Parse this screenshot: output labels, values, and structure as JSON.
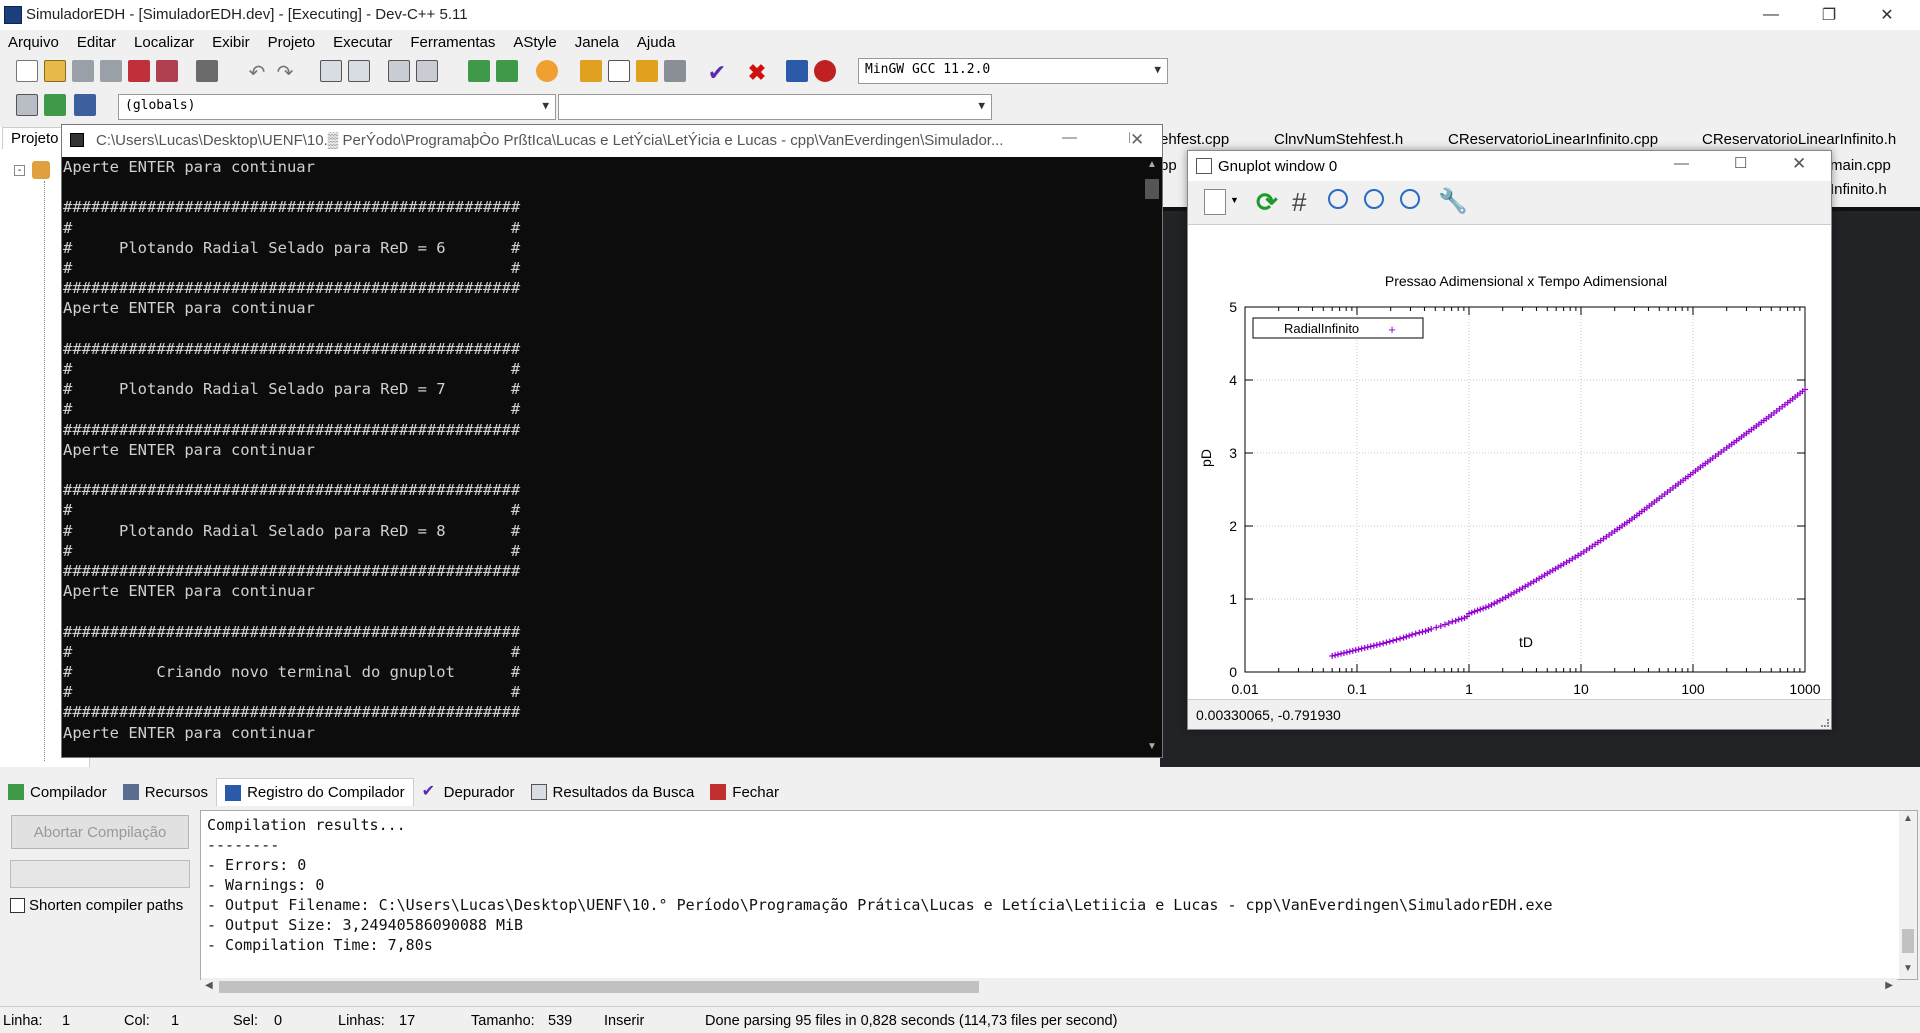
{
  "window": {
    "title": "SimuladorEDH - [SimuladorEDH.dev] - [Executing] - Dev-C++ 5.11"
  },
  "menu": [
    "Arquivo",
    "Editar",
    "Localizar",
    "Exibir",
    "Projeto",
    "Executar",
    "Ferramentas",
    "AStyle",
    "Janela",
    "Ajuda"
  ],
  "toolbar": {
    "compiler": "MinGW GCC 11.2.0",
    "scope": "(globals)"
  },
  "project_panel": {
    "tab": "Projeto"
  },
  "editor_tabs": {
    "row1": [
      "ehfest.cpp",
      "ClnvNumStehfest.h",
      "CReservatorioLinearInfinito.cpp",
      "CReservatorioLinearInfinito.h"
    ],
    "row2": [
      "pp",
      "main.cpp"
    ],
    "row3": [
      "Infinito.h"
    ]
  },
  "console": {
    "title": "C:\\Users\\Lucas\\Desktop\\UENF\\10.▒ PerÝodo\\ProgramaþÒo PrßtIca\\Lucas e LetÝcia\\LetÝicia e Lucas - cpp\\VanEverdingen\\Simulador...",
    "text": "Aperte ENTER para continuar\n\n#################################################\n#                                               #\n#     Plotando Radial Selado para ReD = 6       #\n#                                               #\n#################################################\nAperte ENTER para continuar\n\n#################################################\n#                                               #\n#     Plotando Radial Selado para ReD = 7       #\n#                                               #\n#################################################\nAperte ENTER para continuar\n\n#################################################\n#                                               #\n#     Plotando Radial Selado para ReD = 8       #\n#                                               #\n#################################################\nAperte ENTER para continuar\n\n#################################################\n#                                               #\n#         Criando novo terminal do gnuplot      #\n#                                               #\n#################################################\nAperte ENTER para continuar"
  },
  "gnuplot": {
    "title": "Gnuplot window 0",
    "status": "0.00330065, -0.791930"
  },
  "chart_data": {
    "type": "scatter",
    "title": "Pressao Adimensional x Tempo Adimensional",
    "xlabel": "tD",
    "ylabel": "pD",
    "xscale": "log",
    "xlim": [
      0.01,
      1000
    ],
    "ylim": [
      0,
      5
    ],
    "xticks": [
      "0.01",
      "0.1",
      "1",
      "10",
      "100",
      "1000"
    ],
    "yticks": [
      "0",
      "1",
      "2",
      "3",
      "4",
      "5"
    ],
    "grid": true,
    "legend": "top-left",
    "series": [
      {
        "name": "RadialInfinito",
        "color": "#9400d3",
        "marker": "+",
        "x": [
          0.06,
          0.11,
          0.16,
          0.21,
          0.26,
          0.31,
          0.36,
          0.41,
          0.46,
          0.51,
          0.56,
          0.61,
          0.66,
          0.71,
          0.76,
          0.81,
          0.86,
          0.91,
          0.96,
          1,
          1.5,
          2,
          3,
          4,
          5,
          7,
          10,
          15,
          20,
          30,
          50,
          70,
          100,
          150,
          200,
          300,
          500,
          700,
          1000
        ],
        "y": [
          0.22,
          0.32,
          0.38,
          0.43,
          0.47,
          0.51,
          0.54,
          0.56,
          0.59,
          0.61,
          0.63,
          0.65,
          0.67,
          0.69,
          0.7,
          0.72,
          0.73,
          0.74,
          0.76,
          0.8,
          0.9,
          1.0,
          1.15,
          1.26,
          1.35,
          1.48,
          1.62,
          1.8,
          1.93,
          2.12,
          2.38,
          2.55,
          2.73,
          2.93,
          3.07,
          3.27,
          3.52,
          3.69,
          3.87
        ]
      }
    ]
  },
  "bottom_tabs": [
    "Compilador",
    "Recursos",
    "Registro do Compilador",
    "Depurador",
    "Resultados da Busca",
    "Fechar"
  ],
  "compiler_panel": {
    "abort_label": "Abortar Compilação",
    "shorten_label": "Shorten compiler paths",
    "log": "Compilation results...\n--------\n- Errors: 0\n- Warnings: 0\n- Output Filename: C:\\Users\\Lucas\\Desktop\\UENF\\10.° Período\\Programação Prática\\Lucas e Letícia\\Letiicia e Lucas - cpp\\VanEverdingen\\SimuladorEDH.exe\n- Output Size: 3,24940586090088 MiB\n- Compilation Time: 7,80s"
  },
  "statusbar": {
    "line_label": "Linha:",
    "line": "1",
    "col_label": "Col:",
    "col": "1",
    "sel_label": "Sel:",
    "sel": "0",
    "lines_label": "Linhas:",
    "lines": "17",
    "size_label": "Tamanho:",
    "size": "539",
    "mode": "Inserir",
    "message": "Done parsing 95 files in 0,828 seconds (114,73 files per second)"
  }
}
